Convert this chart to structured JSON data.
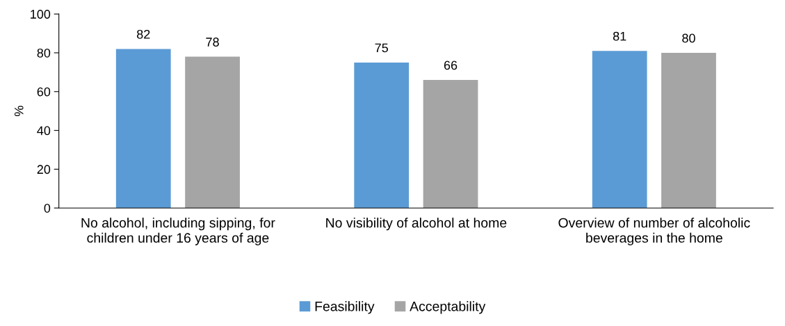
{
  "chart_data": {
    "type": "bar",
    "ylabel": "%",
    "categories": [
      "No alcohol, including sipping, for children under 16 years of age",
      "No visibility of alcohol at home",
      "Overview of number of alcoholic beverages in the home"
    ],
    "series": [
      {
        "name": "Feasibility",
        "color": "#5b9bd5",
        "values": [
          82,
          75,
          81
        ]
      },
      {
        "name": "Acceptability",
        "color": "#a5a5a5",
        "values": [
          78,
          66,
          80
        ]
      }
    ],
    "ylim": [
      0,
      100
    ],
    "yticks": [
      0,
      20,
      40,
      60,
      80,
      100
    ],
    "grid": false,
    "legend": "bottom",
    "data_labels": true
  }
}
